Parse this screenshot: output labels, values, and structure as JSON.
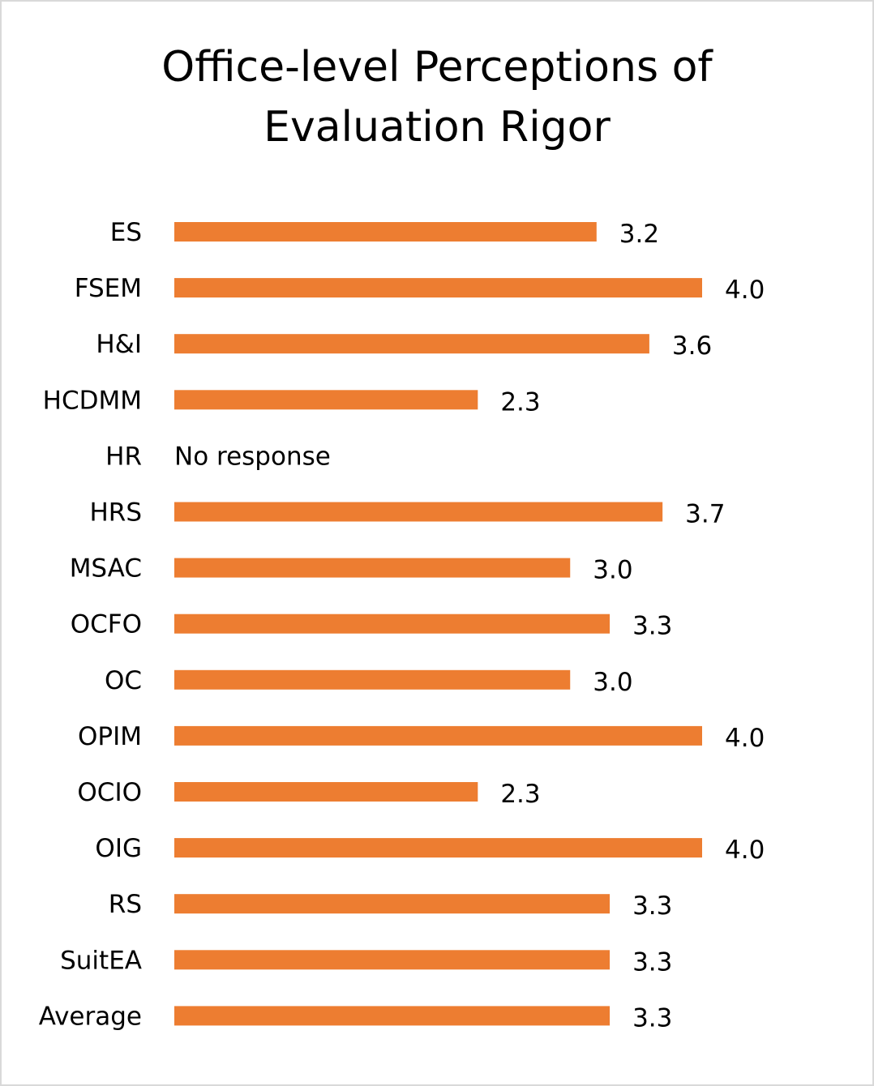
{
  "chart_data": {
    "type": "bar",
    "orientation": "horizontal",
    "title": "Office-level Perceptions of Evaluation Rigor",
    "xlabel": "",
    "ylabel": "",
    "xlim": [
      0,
      4.0
    ],
    "grid": false,
    "legend": "none",
    "bar_color": "#ED7D31",
    "categories": [
      "ES",
      "FSEM",
      "H&I",
      "HCDMM",
      "HR",
      "HRS",
      "MSAC",
      "OCFO",
      "OC",
      "OPIM",
      "OCIO",
      "OIG",
      "RS",
      "SuitEA",
      "Average"
    ],
    "values": [
      3.2,
      4.0,
      3.6,
      2.3,
      null,
      3.7,
      3.0,
      3.3,
      3.0,
      4.0,
      2.3,
      4.0,
      3.3,
      3.3,
      3.3
    ],
    "data_labels": [
      "3.2",
      "4.0",
      "3.6",
      "2.3",
      "No response",
      "3.7",
      "3.0",
      "3.3",
      "3.0",
      "4.0",
      "2.3",
      "4.0",
      "3.3",
      "3.3",
      "3.3"
    ]
  }
}
